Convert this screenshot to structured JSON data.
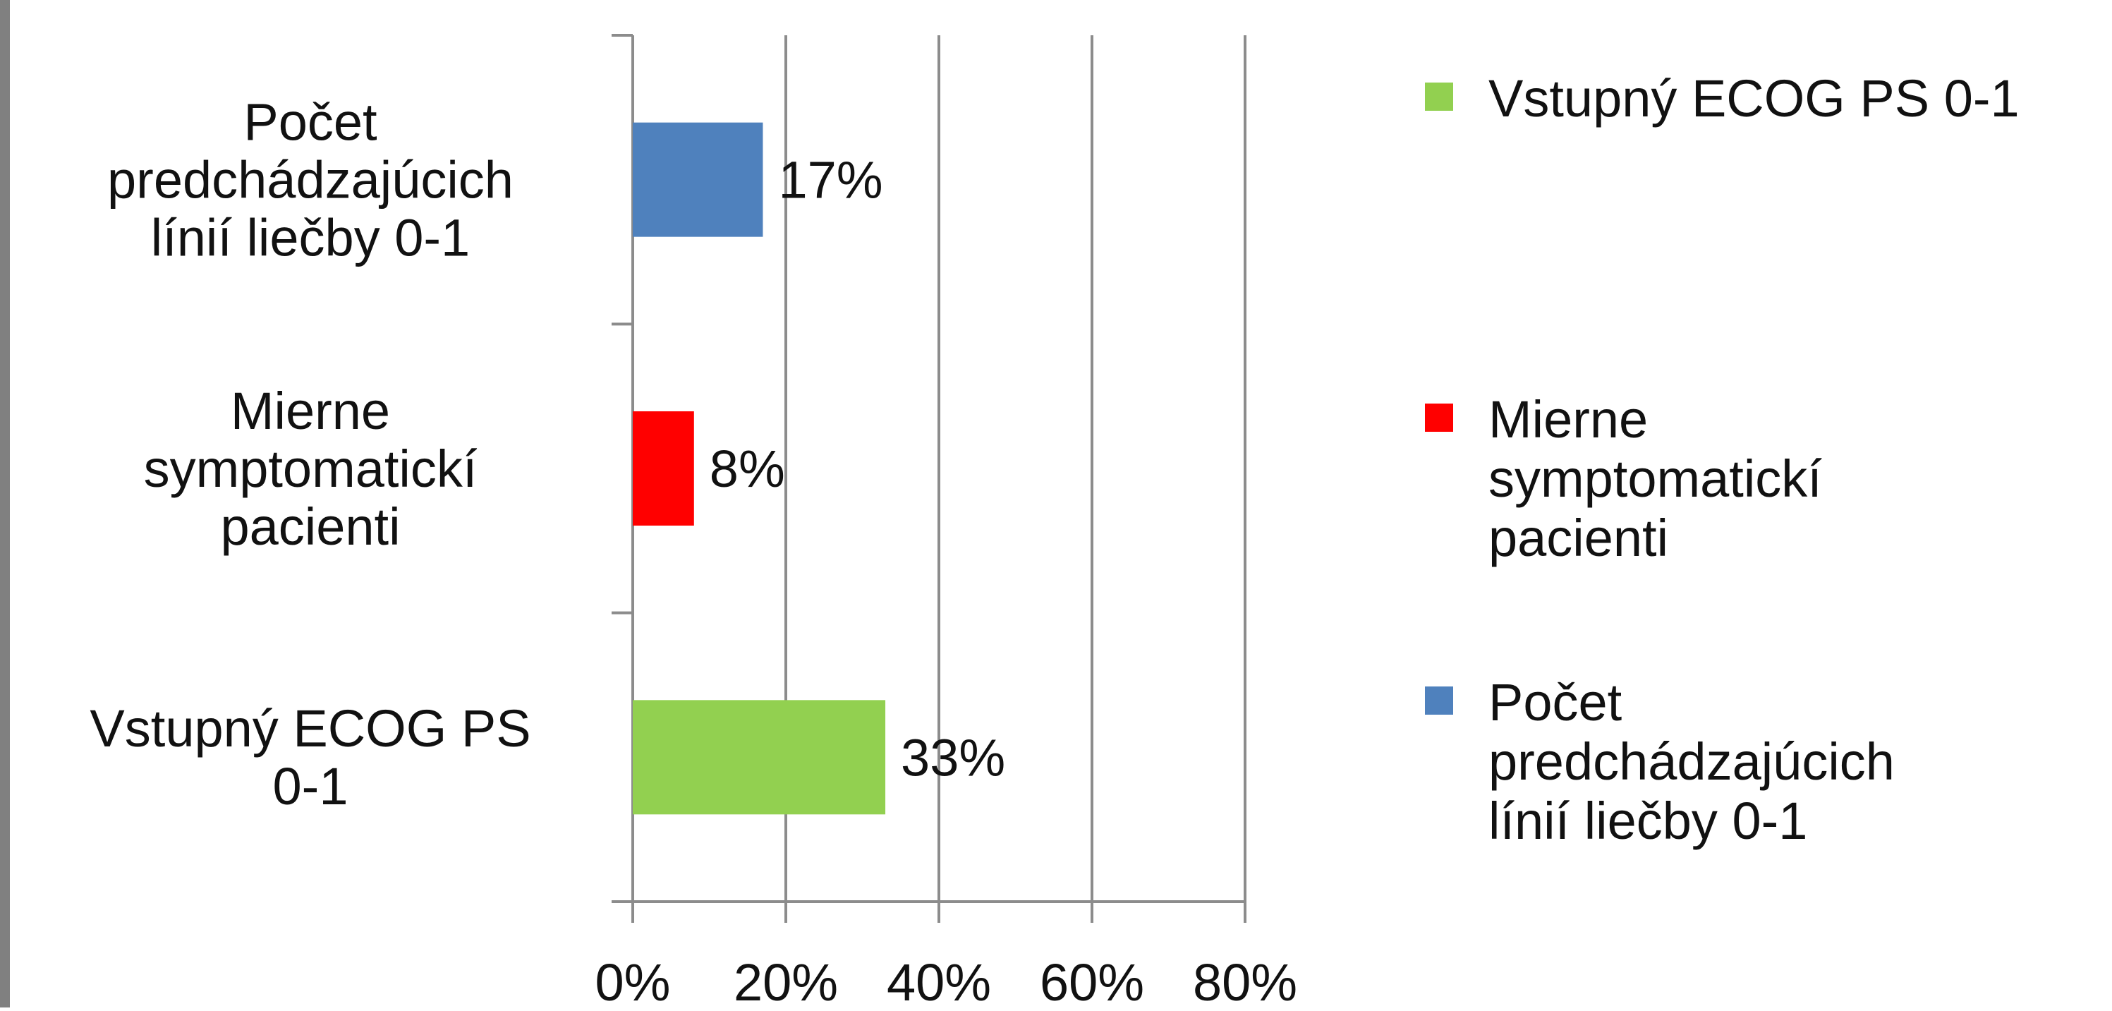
{
  "chart_data": {
    "type": "bar",
    "orientation": "horizontal",
    "categories": [
      "Počet predchádzajúcich línií liečby 0-1",
      "Mierne symptomatickí pacienti",
      "Vstupný ECOG PS 0-1"
    ],
    "category_label_lines": [
      [
        "Počet",
        "predchádzajúcich",
        "línií liečby 0-1"
      ],
      [
        "Mierne",
        "symptomatickí",
        "pacienti"
      ],
      [
        "Vstupný ECOG PS",
        "0-1"
      ]
    ],
    "series": [
      {
        "name": "Vstupný ECOG PS 0-1",
        "category": "Vstupný ECOG PS 0-1",
        "value": 33,
        "label": "33%",
        "color": "#92d050"
      },
      {
        "name": "Mierne symptomatickí pacienti",
        "category": "Mierne symptomatickí pacienti",
        "value": 8,
        "label": "8%",
        "color": "#ff0000"
      },
      {
        "name": "Počet predchádzajúcich línií liečby 0-1",
        "category": "Počet predchádzajúcich línií liečby 0-1",
        "value": 17,
        "label": "17%",
        "color": "#4f81bd"
      }
    ],
    "x_ticks": [
      "0%",
      "20%",
      "40%",
      "60%",
      "80%"
    ],
    "x_tick_values": [
      0,
      20,
      40,
      60,
      80
    ],
    "xlim": [
      0,
      80
    ],
    "grid": true,
    "legend_position": "right",
    "legend": [
      {
        "lines": [
          "Vstupný ECOG PS 0-1"
        ],
        "color": "#92d050"
      },
      {
        "lines": [
          "Mierne",
          "symptomatickí",
          "pacienti"
        ],
        "color": "#ff0000"
      },
      {
        "lines": [
          "Počet",
          "predchádzajúcich",
          "línií liečby 0-1"
        ],
        "color": "#4f81bd"
      }
    ]
  }
}
